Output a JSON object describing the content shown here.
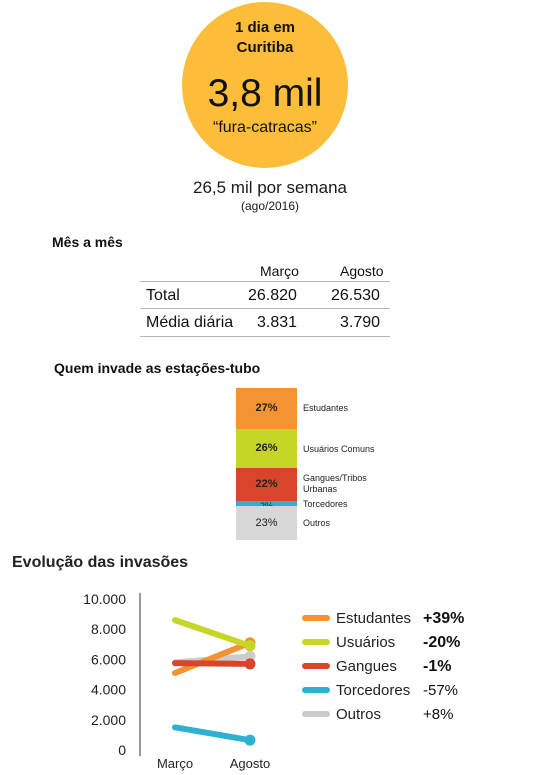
{
  "hero": {
    "heading_line1": "1 dia em",
    "heading_line2": "Curitiba",
    "number": "3,8 mil",
    "caption": "“fura-catracas”",
    "color": "#fbbd3a"
  },
  "weekly": {
    "text": "26,5 mil por semana",
    "date": "(ago/2016)"
  },
  "monthly": {
    "title": "Mês a mês",
    "columns": [
      "Março",
      "Agosto"
    ],
    "rows": [
      {
        "label": "Total",
        "values": [
          "26.820",
          "26.530"
        ]
      },
      {
        "label": "Média diária",
        "values": [
          "3.831",
          "3.790"
        ]
      }
    ]
  },
  "stack": {
    "title": "Quem invade as estações-tubo",
    "segments": [
      {
        "label": "Estudantes",
        "pct_label": "27%",
        "value": 27,
        "color": "#f39332"
      },
      {
        "label": "Usuários Comuns",
        "pct_label": "26%",
        "value": 26,
        "color": "#c6d626"
      },
      {
        "label": "Gangues/Tribos Urbanas",
        "pct_label": "22%",
        "value": 22,
        "color": "#d9452a"
      },
      {
        "label": "Torcedores",
        "pct_label": "2%",
        "value": 2,
        "color": "#2eb0d2"
      },
      {
        "label": "Outros",
        "pct_label": "23%",
        "value": 23,
        "color": "#d7d7d7"
      }
    ]
  },
  "chart_data": {
    "type": "line",
    "title": "Evolução das invasões",
    "categories": [
      "Março",
      "Agosto"
    ],
    "ylim": [
      0,
      10000
    ],
    "y_ticks": [
      "10.000",
      "8.000",
      "6.000",
      "4.000",
      "2.000",
      "0"
    ],
    "y_tick_values": [
      10000,
      8000,
      6000,
      4000,
      2000,
      0
    ],
    "grid": false,
    "legend_position": "right",
    "series": [
      {
        "name": "Estudantes",
        "change": "+39%",
        "change_bold": true,
        "color": "#f39332",
        "values": [
          5100,
          7100
        ]
      },
      {
        "name": "Usuários",
        "change": "-20%",
        "change_bold": true,
        "color": "#c6d626",
        "values": [
          8600,
          6900
        ]
      },
      {
        "name": "Gangues",
        "change": "-1%",
        "change_bold": true,
        "color": "#d9452a",
        "values": [
          5750,
          5700
        ]
      },
      {
        "name": "Torcedores",
        "change": "-57%",
        "change_bold": false,
        "color": "#2eb0d2",
        "values": [
          1500,
          650
        ]
      },
      {
        "name": "Outros",
        "change": "+8%",
        "change_bold": false,
        "color": "#cccccc",
        "values": [
          5800,
          6200
        ]
      }
    ]
  }
}
